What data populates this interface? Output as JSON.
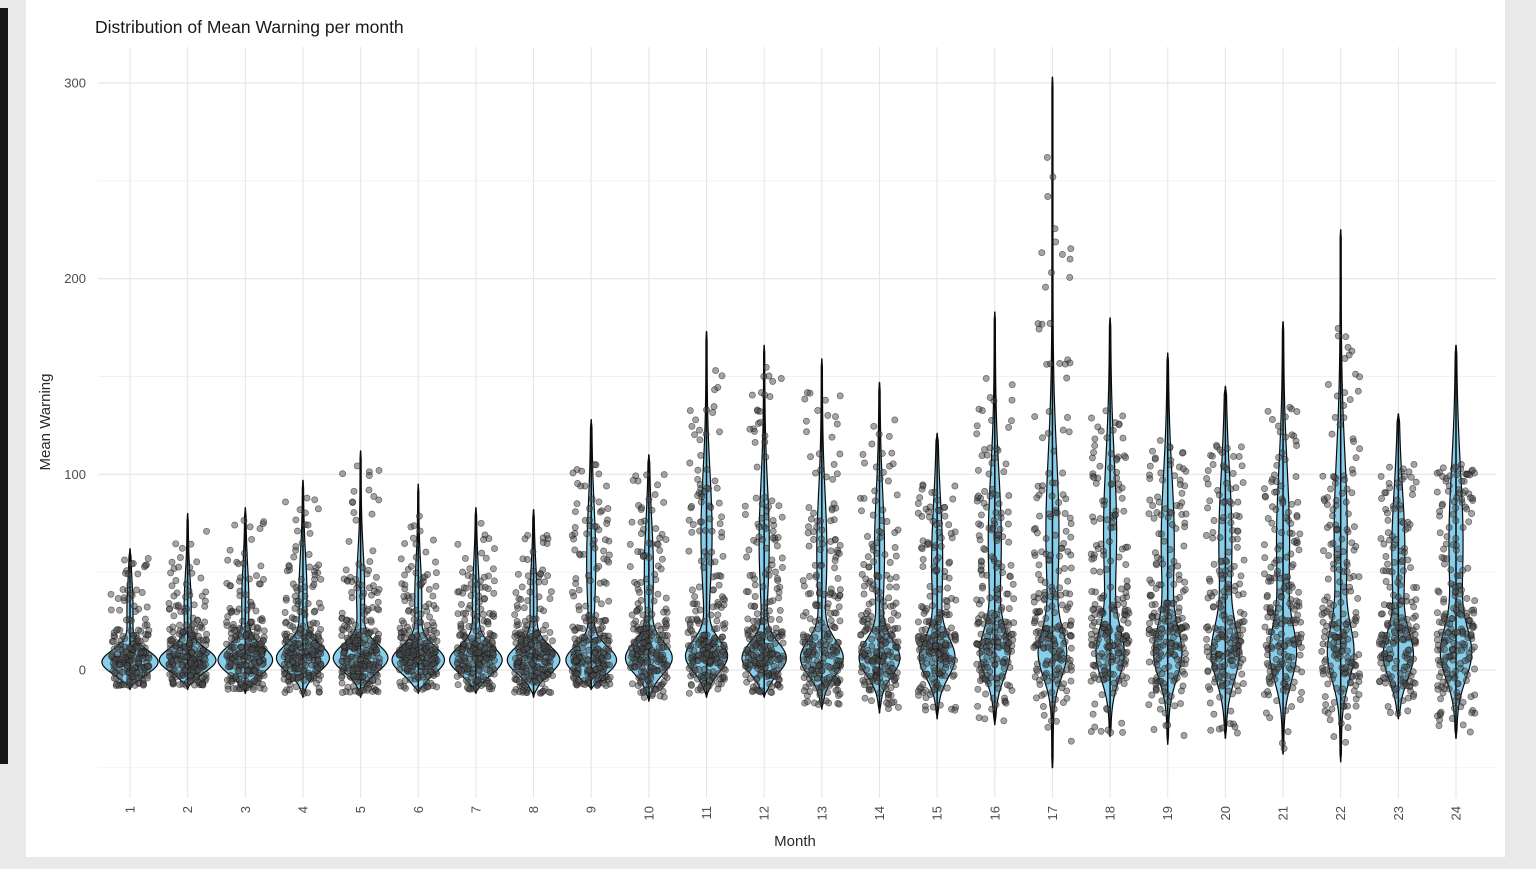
{
  "page": {
    "background_color": "#e9e9e9",
    "figure_background_color": "#ffffff",
    "left_edge_bar_color": "#161616"
  },
  "chart_data": {
    "type": "violin",
    "title": "Distribution of Mean Warning per month",
    "xlabel": "Month",
    "ylabel": "Mean Warning",
    "x_categories": [
      "1",
      "2",
      "3",
      "4",
      "5",
      "6",
      "7",
      "8",
      "9",
      "10",
      "11",
      "12",
      "13",
      "14",
      "15",
      "16",
      "17",
      "18",
      "19",
      "20",
      "21",
      "22",
      "23",
      "24"
    ],
    "y_ticks": [
      0,
      100,
      200,
      300
    ],
    "y_tick_labels": [
      "0",
      "100",
      "200",
      "300"
    ],
    "y_minor_gridlines": [
      -50,
      50,
      150,
      250
    ],
    "ylim": [
      -65,
      318
    ],
    "x_tick_angle": 90,
    "grid": true,
    "legend": "none",
    "style": {
      "violin_fill": "#87CEEB",
      "violin_outline": "#0a0a0a",
      "point_fill": "#4a4a4a",
      "point_opacity": 0.5,
      "point_stroke": "#111111",
      "major_grid_color": "#e6e6e6",
      "minor_grid_color": "#f1f1f1",
      "title_color": "#191919",
      "axis_title_color": "#2b2b2b",
      "tick_label_color": "#4d4d4d"
    },
    "months": [
      {
        "m": 1,
        "min": -10,
        "max": 62,
        "pmax": 58,
        "mode": 4,
        "core_hw": 27,
        "core_sd": 6,
        "stem_hw": 2.5,
        "stem_c": 30,
        "stem_sd": 15,
        "pts": [
          150,
          40,
          12
        ]
      },
      {
        "m": 2,
        "min": -10,
        "max": 80,
        "pmax": 75,
        "mode": 5,
        "core_hw": 27,
        "core_sd": 6,
        "stem_hw": 3,
        "stem_c": 32,
        "stem_sd": 16,
        "pts": [
          170,
          50,
          14
        ]
      },
      {
        "m": 3,
        "min": -12,
        "max": 83,
        "pmax": 80,
        "mode": 5,
        "core_hw": 26,
        "core_sd": 7,
        "stem_hw": 3,
        "stem_c": 35,
        "stem_sd": 18,
        "pts": [
          170,
          50,
          14
        ]
      },
      {
        "m": 4,
        "min": -14,
        "max": 97,
        "pmax": 90,
        "mode": 6,
        "core_hw": 25,
        "core_sd": 7,
        "stem_hw": 3.5,
        "stem_c": 38,
        "stem_sd": 20,
        "pts": [
          170,
          55,
          16
        ]
      },
      {
        "m": 5,
        "min": -14,
        "max": 112,
        "pmax": 105,
        "mode": 6,
        "core_hw": 26,
        "core_sd": 7,
        "stem_hw": 3.5,
        "stem_c": 40,
        "stem_sd": 20,
        "pts": [
          180,
          55,
          16
        ]
      },
      {
        "m": 6,
        "min": -12,
        "max": 95,
        "pmax": 88,
        "mode": 5,
        "core_hw": 25,
        "core_sd": 7,
        "stem_hw": 3,
        "stem_c": 36,
        "stem_sd": 18,
        "pts": [
          170,
          55,
          14
        ]
      },
      {
        "m": 7,
        "min": -12,
        "max": 83,
        "pmax": 78,
        "mode": 5,
        "core_hw": 25,
        "core_sd": 7,
        "stem_hw": 3,
        "stem_c": 35,
        "stem_sd": 18,
        "pts": [
          160,
          50,
          12
        ]
      },
      {
        "m": 8,
        "min": -14,
        "max": 82,
        "pmax": 75,
        "mode": 5,
        "core_hw": 25,
        "core_sd": 7,
        "stem_hw": 3,
        "stem_c": 35,
        "stem_sd": 18,
        "pts": [
          170,
          50,
          12
        ]
      },
      {
        "m": 9,
        "min": -10,
        "max": 128,
        "pmax": 105,
        "mode": 5,
        "core_hw": 24,
        "core_sd": 7,
        "stem_hw": 4,
        "stem_c": 55,
        "stem_sd": 28,
        "pts": [
          160,
          60,
          18
        ]
      },
      {
        "m": 10,
        "min": -16,
        "max": 110,
        "pmax": 100,
        "mode": 6,
        "core_hw": 22,
        "core_sd": 8,
        "stem_hw": 4,
        "stem_c": 50,
        "stem_sd": 25,
        "pts": [
          160,
          60,
          18
        ]
      },
      {
        "m": 11,
        "min": -14,
        "max": 173,
        "pmax": 155,
        "mode": 7,
        "core_hw": 20,
        "core_sd": 8,
        "stem_hw": 5,
        "stem_c": 70,
        "stem_sd": 30,
        "pts": [
          150,
          70,
          22
        ]
      },
      {
        "m": 12,
        "min": -14,
        "max": 166,
        "pmax": 155,
        "mode": 6,
        "core_hw": 21,
        "core_sd": 8,
        "stem_hw": 4.5,
        "stem_c": 65,
        "stem_sd": 30,
        "pts": [
          150,
          70,
          22
        ]
      },
      {
        "m": 13,
        "min": -20,
        "max": 159,
        "pmax": 145,
        "mode": 6,
        "core_hw": 20,
        "core_sd": 9,
        "stem_hw": 4.5,
        "stem_c": 60,
        "stem_sd": 30,
        "pts": [
          140,
          70,
          22
        ]
      },
      {
        "m": 14,
        "min": -22,
        "max": 147,
        "pmax": 130,
        "mode": 6,
        "core_hw": 19,
        "core_sd": 9,
        "stem_hw": 4.5,
        "stem_c": 60,
        "stem_sd": 30,
        "pts": [
          140,
          70,
          20
        ]
      },
      {
        "m": 15,
        "min": -25,
        "max": 121,
        "pmax": 95,
        "mode": 6,
        "core_hw": 16,
        "core_sd": 10,
        "stem_hw": 5,
        "stem_c": 55,
        "stem_sd": 30,
        "pts": [
          130,
          70,
          18
        ]
      },
      {
        "m": 16,
        "min": -28,
        "max": 183,
        "pmax": 150,
        "mode": 8,
        "core_hw": 13,
        "core_sd": 12,
        "stem_hw": 6,
        "stem_c": 65,
        "stem_sd": 35,
        "pts": [
          120,
          80,
          24
        ]
      },
      {
        "m": 17,
        "min": -50,
        "max": 303,
        "pmax": 230,
        "mode": 8,
        "core_hw": 12,
        "core_sd": 12,
        "stem_hw": 6,
        "stem_c": 70,
        "stem_sd": 40,
        "pts": [
          110,
          80,
          28
        ],
        "outliers": [
          242,
          252,
          262
        ]
      },
      {
        "m": 18,
        "min": -34,
        "max": 180,
        "pmax": 140,
        "mode": 8,
        "core_hw": 12,
        "core_sd": 13,
        "stem_hw": 6,
        "stem_c": 70,
        "stem_sd": 38,
        "pts": [
          120,
          80,
          24
        ]
      },
      {
        "m": 19,
        "min": -38,
        "max": 162,
        "pmax": 120,
        "mode": 8,
        "core_hw": 12,
        "core_sd": 13,
        "stem_hw": 6,
        "stem_c": 65,
        "stem_sd": 35,
        "pts": [
          120,
          75,
          22
        ]
      },
      {
        "m": 20,
        "min": -35,
        "max": 145,
        "pmax": 115,
        "mode": 8,
        "core_hw": 12,
        "core_sd": 14,
        "stem_hw": 6,
        "stem_c": 65,
        "stem_sd": 35,
        "pts": [
          110,
          75,
          22
        ]
      },
      {
        "m": 21,
        "min": -43,
        "max": 178,
        "pmax": 135,
        "mode": 8,
        "core_hw": 11,
        "core_sd": 14,
        "stem_hw": 6,
        "stem_c": 65,
        "stem_sd": 38,
        "pts": [
          110,
          75,
          22
        ]
      },
      {
        "m": 22,
        "min": -47,
        "max": 225,
        "pmax": 178,
        "mode": 8,
        "core_hw": 11,
        "core_sd": 14,
        "stem_hw": 6,
        "stem_c": 70,
        "stem_sd": 40,
        "pts": [
          110,
          75,
          24
        ]
      },
      {
        "m": 23,
        "min": -25,
        "max": 131,
        "pmax": 108,
        "mode": 7,
        "core_hw": 13,
        "core_sd": 12,
        "stem_hw": 6,
        "stem_c": 60,
        "stem_sd": 32,
        "pts": [
          110,
          70,
          20
        ]
      },
      {
        "m": 24,
        "min": -35,
        "max": 166,
        "pmax": 107,
        "mode": 8,
        "core_hw": 13,
        "core_sd": 13,
        "stem_hw": 6.5,
        "stem_c": 65,
        "stem_sd": 38,
        "pts": [
          120,
          80,
          22
        ]
      }
    ]
  }
}
